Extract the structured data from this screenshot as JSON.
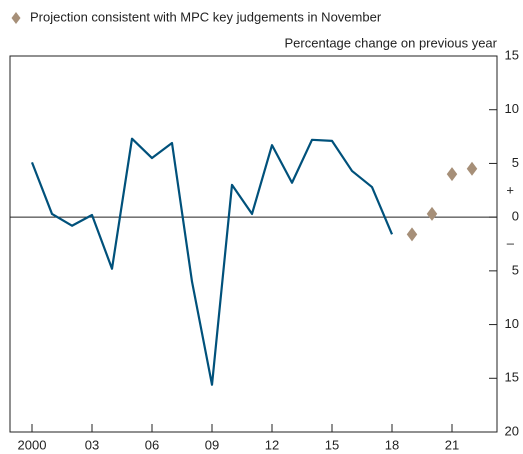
{
  "chart_data": {
    "type": "line",
    "y_axis_label": "Percentage change on previous year",
    "sign_labels": {
      "positive": "+",
      "negative": "–"
    },
    "x": [
      2000,
      2001,
      2002,
      2003,
      2004,
      2005,
      2006,
      2007,
      2008,
      2009,
      2010,
      2011,
      2012,
      2013,
      2014,
      2015,
      2016,
      2017,
      2018
    ],
    "series": [
      {
        "color": "#00517b",
        "values": [
          5.1,
          0.3,
          -0.8,
          0.2,
          -4.8,
          7.3,
          5.5,
          6.9,
          -6.0,
          -15.6,
          3.0,
          0.3,
          6.7,
          3.2,
          7.2,
          7.1,
          4.3,
          2.8,
          -1.6
        ]
      },
      {
        "name": "Projection consistent with MPC key judgements in November",
        "type": "scatter",
        "marker": "diamond",
        "color": "#a68f78",
        "x": [
          2019,
          2020,
          2021,
          2022
        ],
        "values": [
          -1.6,
          0.3,
          4.0,
          4.5
        ]
      }
    ],
    "xlim": [
      1998.9,
      2023.25
    ],
    "xticks": [
      2000,
      {
        "value": 2003,
        "label": "03"
      },
      {
        "value": 2006,
        "label": "06"
      },
      {
        "value": 2009,
        "label": "09"
      },
      {
        "value": 2012,
        "label": "12"
      },
      {
        "value": 2015,
        "label": "15"
      },
      {
        "value": 2018,
        "label": "18"
      },
      {
        "value": 2021,
        "label": "21"
      }
    ],
    "ylim": [
      -20,
      15
    ],
    "yticks": [
      15,
      10,
      5,
      0,
      {
        "value": -5,
        "label": "5"
      },
      {
        "value": -10,
        "label": "10"
      },
      {
        "value": -15,
        "label": "15"
      },
      {
        "value": -20,
        "label": "20"
      }
    ],
    "zero_line": true,
    "legend": "top-left"
  }
}
